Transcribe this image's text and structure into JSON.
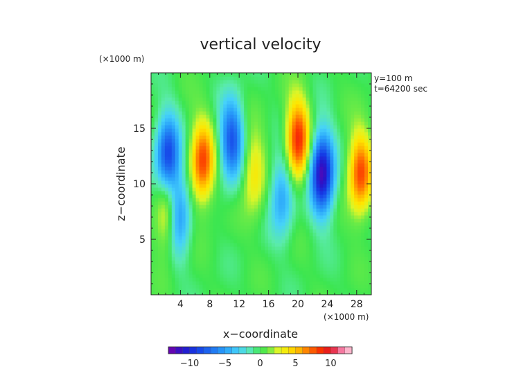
{
  "chart_data": {
    "type": "heatmap",
    "title": "vertical velocity",
    "xlabel": "x−coordinate",
    "ylabel": "z−coordinate",
    "x_unit": "(×1000 m)",
    "y_unit": "(×1000 m)",
    "annotation_lines": [
      "y=100 m",
      "t=64200 sec"
    ],
    "xlim": [
      0,
      30
    ],
    "ylim": [
      0,
      20
    ],
    "x_ticks": [
      4,
      8,
      12,
      16,
      20,
      24,
      28
    ],
    "y_ticks": [
      5,
      10,
      15
    ],
    "colorbar": {
      "range": [
        -13,
        13
      ],
      "ticks": [
        -10,
        -5,
        0,
        5,
        10
      ],
      "tick_labels": [
        "−10",
        "−5",
        "0",
        "5",
        "10"
      ]
    },
    "features": [
      {
        "x": 2.3,
        "z": 12.5,
        "amp": -9
      },
      {
        "x": 3.6,
        "z": 7.2,
        "amp": -7
      },
      {
        "x": 2.4,
        "z": 7.5,
        "amp": 6
      },
      {
        "x": 7.0,
        "z": 12.0,
        "amp": 8
      },
      {
        "x": 11.0,
        "z": 14.0,
        "amp": -8
      },
      {
        "x": 14.0,
        "z": 11.0,
        "amp": 4
      },
      {
        "x": 17.8,
        "z": 9.0,
        "amp": -5
      },
      {
        "x": 20.0,
        "z": 14.0,
        "amp": 9
      },
      {
        "x": 23.3,
        "z": 11.0,
        "amp": -12
      },
      {
        "x": 28.5,
        "z": 11.0,
        "amp": 8
      }
    ]
  }
}
